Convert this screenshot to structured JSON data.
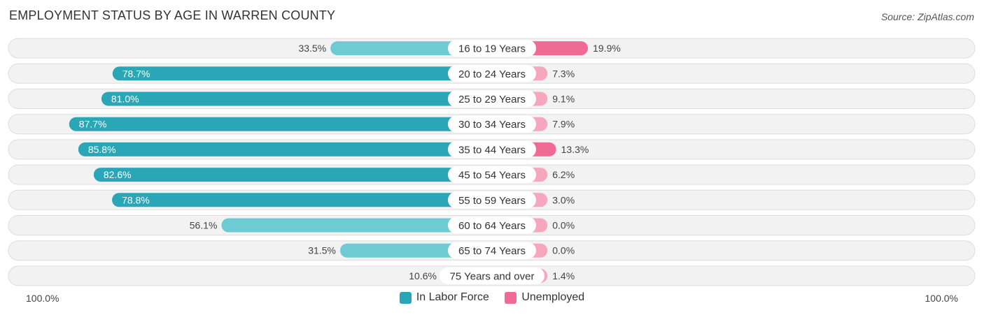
{
  "header": {
    "title": "EMPLOYMENT STATUS BY AGE IN WARREN COUNTY",
    "source": "Source: ZipAtlas.com"
  },
  "colors": {
    "labor_dark": "#2aa6b6",
    "labor_light": "#6ecad3",
    "unemp_dark": "#f06a95",
    "unemp_light": "#f7a6bf",
    "row_bg": "#f2f2f2",
    "row_border": "#dddddd"
  },
  "chart_data": {
    "type": "bar",
    "orientation": "horizontal-diverging",
    "title": "EMPLOYMENT STATUS BY AGE IN WARREN COUNTY",
    "categories": [
      "16 to 19 Years",
      "20 to 24 Years",
      "25 to 29 Years",
      "30 to 34 Years",
      "35 to 44 Years",
      "45 to 54 Years",
      "55 to 59 Years",
      "60 to 64 Years",
      "65 to 74 Years",
      "75 Years and over"
    ],
    "series": [
      {
        "name": "In Labor Force",
        "values": [
          33.5,
          78.7,
          81.0,
          87.7,
          85.8,
          82.6,
          78.8,
          56.1,
          31.5,
          10.6
        ],
        "labels": [
          "33.5%",
          "78.7%",
          "81.0%",
          "87.7%",
          "85.8%",
          "82.6%",
          "78.8%",
          "56.1%",
          "31.5%",
          "10.6%"
        ]
      },
      {
        "name": "Unemployed",
        "values": [
          19.9,
          7.3,
          9.1,
          7.9,
          13.3,
          6.2,
          3.0,
          0.0,
          0.0,
          1.4
        ],
        "labels": [
          "19.9%",
          "7.3%",
          "9.1%",
          "7.9%",
          "13.3%",
          "6.2%",
          "3.0%",
          "0.0%",
          "0.0%",
          "1.4%"
        ]
      }
    ],
    "axis": {
      "left_label": "100.0%",
      "right_label": "100.0%",
      "range": [
        0,
        100
      ]
    },
    "legend": {
      "position": "bottom-center",
      "items": [
        "In Labor Force",
        "Unemployed"
      ]
    }
  }
}
